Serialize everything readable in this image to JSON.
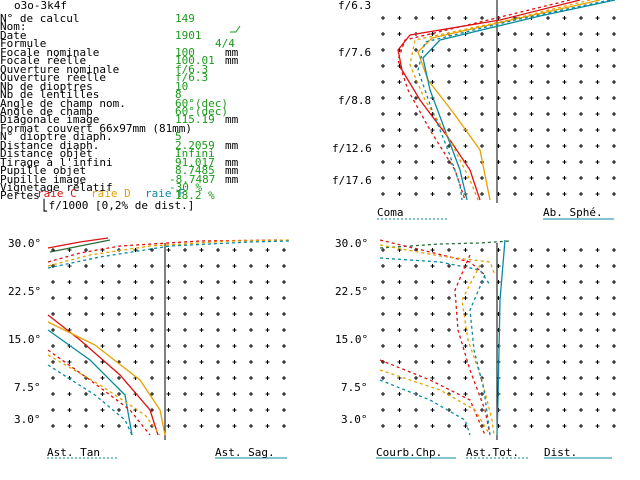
{
  "title": "o3o-3k4f",
  "params": [
    {
      "label": "N° de calcul",
      "value": "149"
    },
    {
      "label": "Nom:",
      "value": ""
    },
    {
      "label": "Date",
      "value": "1901"
    },
    {
      "label": "Formule",
      "value": "4/4"
    },
    {
      "label": "Focale nominale",
      "value": "100",
      "unit": "mm"
    },
    {
      "label": "Focale réelle",
      "value": "100.01",
      "unit": "mm"
    },
    {
      "label": "Ouverture nominale",
      "value": "f/6.3"
    },
    {
      "label": "Ouverture réelle",
      "value": "f/6.3"
    },
    {
      "label": "Nb de dioptres",
      "value": "10"
    },
    {
      "label": "Nb de lentilles",
      "value": "8"
    },
    {
      "label": "Angle de champ nom.",
      "value": "60°(dec)"
    },
    {
      "label": "Angle de champ",
      "value": "60°(dec)"
    },
    {
      "label": "Diagonale image",
      "value": "115.19",
      "unit": "mm"
    },
    {
      "label": "Format couvert",
      "value": "66x97mm (81mm)",
      "raw": "Format couvert 66x97mm (81mm)"
    },
    {
      "label": "N° dioptre diaph.",
      "value": "5"
    },
    {
      "label": "Distance diaph.",
      "value": "2.2059",
      "unit": "mm"
    },
    {
      "label": "Distance objet",
      "value": "Infini"
    },
    {
      "label": "Tirage à l'infini",
      "value": "91.017",
      "unit": "mm"
    },
    {
      "label": "Pupille objet",
      "value": "8.7485",
      "unit": "mm"
    },
    {
      "label": "Pupille image",
      "value": "-8.7487",
      "unit": "mm"
    },
    {
      "label": "Vignetage relatif",
      "value": "-30 %"
    },
    {
      "label": "Pertes",
      "value": "18.2 %"
    }
  ],
  "scale_note": "f/1000 [0,2% de dist.]",
  "legend": {
    "c": "raie C",
    "d": "raie D",
    "f": "raie F"
  },
  "colors": {
    "c": "#d11",
    "d": "#e6a100",
    "f": "#0a8aa0",
    "values": "#1b9a1b"
  },
  "coma_panel": {
    "ticks": [
      "f/6.3",
      "f/7.6",
      "f/8.8",
      "f/12.6",
      "f/17.6"
    ],
    "left_label": "Coma",
    "right_label": "Ab. Sphé."
  },
  "astig_panel": {
    "ticks": [
      "30.0°",
      "22.5°",
      "15.0°",
      "7.5°",
      "3.0°"
    ],
    "left_label": "Ast. Tan",
    "right_label": "Ast. Sag."
  },
  "field_panel": {
    "ticks": [
      "30.0°",
      "22.5°",
      "15.0°",
      "7.5°",
      "3.0°"
    ],
    "labels": [
      "Courb.Chp.",
      "Ast.Tot.",
      "Dist."
    ]
  }
}
